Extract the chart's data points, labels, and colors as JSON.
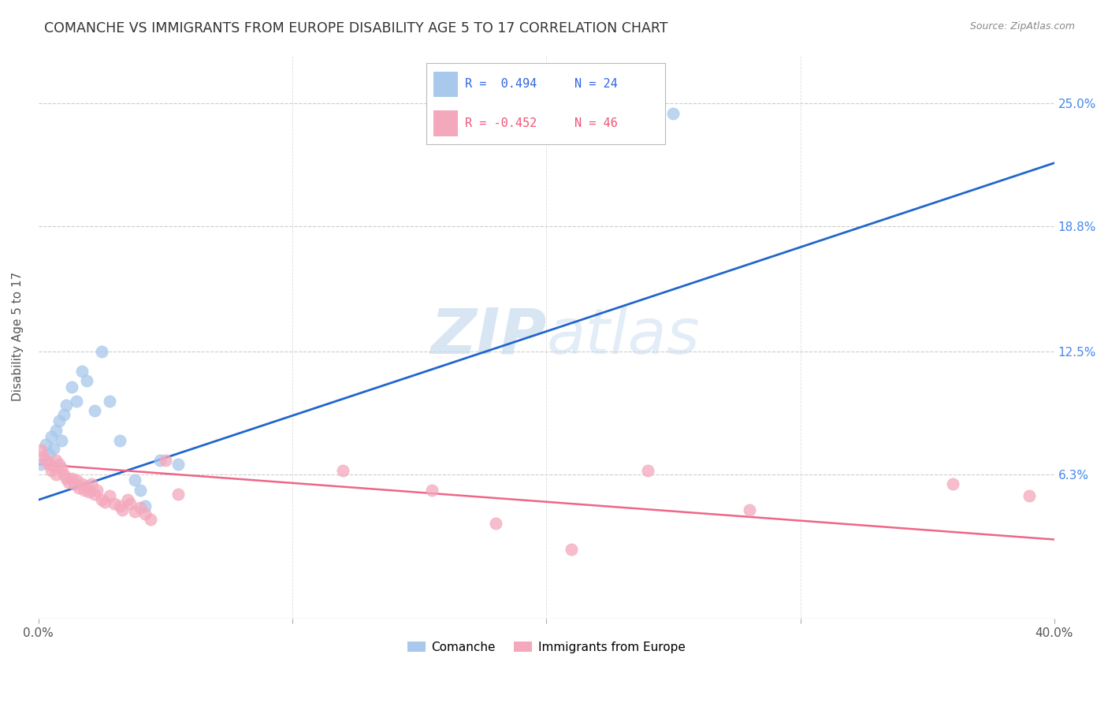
{
  "title": "COMANCHE VS IMMIGRANTS FROM EUROPE DISABILITY AGE 5 TO 17 CORRELATION CHART",
  "source": "Source: ZipAtlas.com",
  "ylabel": "Disability Age 5 to 17",
  "yticks": [
    "6.3%",
    "12.5%",
    "18.8%",
    "25.0%"
  ],
  "ytick_vals": [
    0.063,
    0.125,
    0.188,
    0.25
  ],
  "xlim": [
    0.0,
    0.4
  ],
  "ylim": [
    -0.01,
    0.275
  ],
  "comanche_color": "#A8C8EC",
  "europe_color": "#F4A8BC",
  "trend_blue": "#2266CC",
  "trend_pink": "#EE6688",
  "watermark_color": "#C8DCF0",
  "comanche_x": [
    0.001,
    0.003,
    0.004,
    0.005,
    0.006,
    0.007,
    0.008,
    0.009,
    0.01,
    0.011,
    0.013,
    0.015,
    0.017,
    0.019,
    0.022,
    0.025,
    0.028,
    0.032,
    0.038,
    0.04,
    0.042,
    0.048,
    0.055,
    0.25
  ],
  "comanche_y": [
    0.068,
    0.078,
    0.073,
    0.082,
    0.076,
    0.085,
    0.09,
    0.08,
    0.093,
    0.098,
    0.107,
    0.1,
    0.115,
    0.11,
    0.095,
    0.125,
    0.1,
    0.08,
    0.06,
    0.055,
    0.047,
    0.07,
    0.068,
    0.245
  ],
  "europe_x": [
    0.001,
    0.002,
    0.003,
    0.004,
    0.005,
    0.006,
    0.007,
    0.007,
    0.008,
    0.009,
    0.01,
    0.011,
    0.012,
    0.013,
    0.014,
    0.015,
    0.016,
    0.017,
    0.018,
    0.019,
    0.02,
    0.021,
    0.022,
    0.023,
    0.025,
    0.026,
    0.028,
    0.03,
    0.032,
    0.033,
    0.035,
    0.036,
    0.038,
    0.04,
    0.042,
    0.044,
    0.05,
    0.055,
    0.12,
    0.155,
    0.18,
    0.21,
    0.24,
    0.28,
    0.36,
    0.39
  ],
  "europe_y": [
    0.075,
    0.072,
    0.07,
    0.068,
    0.065,
    0.067,
    0.063,
    0.07,
    0.068,
    0.066,
    0.063,
    0.061,
    0.059,
    0.061,
    0.058,
    0.06,
    0.056,
    0.058,
    0.055,
    0.057,
    0.054,
    0.058,
    0.053,
    0.055,
    0.05,
    0.049,
    0.052,
    0.048,
    0.047,
    0.045,
    0.05,
    0.048,
    0.044,
    0.046,
    0.043,
    0.04,
    0.07,
    0.053,
    0.065,
    0.055,
    0.038,
    0.025,
    0.065,
    0.045,
    0.058,
    0.052
  ],
  "trend_blue_x0": 0.0,
  "trend_blue_y0": 0.05,
  "trend_blue_x1": 0.4,
  "trend_blue_y1": 0.22,
  "trend_pink_x0": 0.0,
  "trend_pink_y0": 0.068,
  "trend_pink_x1": 0.4,
  "trend_pink_y1": 0.03,
  "legend_R1": "R =  0.494",
  "legend_N1": "N = 24",
  "legend_R2": "R = -0.452",
  "legend_N2": "N = 46",
  "legend_label1": "Comanche",
  "legend_label2": "Immigrants from Europe"
}
